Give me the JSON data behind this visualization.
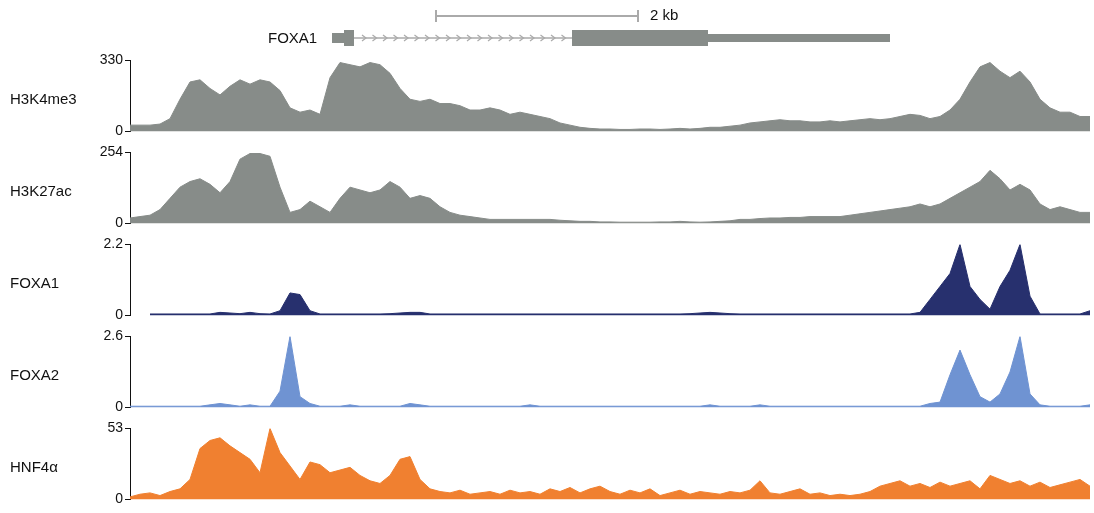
{
  "chart_data": [
    {
      "type": "area",
      "ylabel": "H3K4me3",
      "annotations": [
        "FOXA1",
        "2 kb"
      ],
      "tick_labels": "y",
      "grid": false,
      "ylim": [
        0,
        330
      ],
      "yticks": [
        0,
        330
      ],
      "color": "#878c89",
      "categories": [
        null,
        null,
        null,
        null,
        null,
        null,
        null,
        null,
        null,
        null,
        null,
        null,
        null,
        null,
        null,
        null,
        null,
        null,
        null,
        null,
        null,
        null,
        null,
        null,
        null,
        null,
        null,
        null,
        null,
        null,
        null,
        null,
        null,
        null,
        null,
        null,
        null,
        null,
        null,
        null,
        null,
        null,
        null,
        null,
        null,
        null,
        null,
        null,
        null,
        null,
        null,
        null,
        null,
        null,
        null,
        null,
        null,
        null,
        null,
        null,
        null,
        null,
        null,
        null,
        null,
        null,
        null,
        null,
        null,
        null,
        null,
        null,
        null,
        null,
        null,
        null,
        null,
        null,
        null,
        null,
        null,
        null,
        null,
        null,
        null,
        null,
        null,
        null,
        null,
        null,
        null,
        null,
        null,
        null,
        null,
        null,
        null
      ],
      "values": [
        30,
        30,
        30,
        35,
        60,
        150,
        230,
        240,
        200,
        170,
        210,
        240,
        220,
        240,
        230,
        190,
        110,
        90,
        100,
        80,
        250,
        320,
        310,
        300,
        320,
        310,
        270,
        200,
        150,
        140,
        150,
        130,
        130,
        120,
        100,
        100,
        110,
        100,
        80,
        90,
        80,
        70,
        60,
        40,
        30,
        20,
        15,
        12,
        12,
        10,
        10,
        12,
        12,
        10,
        12,
        15,
        12,
        15,
        20,
        20,
        25,
        30,
        40,
        45,
        50,
        55,
        50,
        50,
        45,
        45,
        50,
        45,
        50,
        55,
        60,
        55,
        60,
        70,
        80,
        75,
        60,
        70,
        100,
        150,
        230,
        300,
        320,
        280,
        250,
        280,
        230,
        150,
        110,
        90,
        90,
        70,
        70
      ]
    },
    {
      "type": "area",
      "ylabel": "H3K27ac",
      "tick_labels": "y",
      "grid": false,
      "ylim": [
        0,
        254
      ],
      "yticks": [
        0,
        254
      ],
      "color": "#878c89",
      "categories": [
        null,
        null,
        null,
        null,
        null,
        null,
        null,
        null,
        null,
        null,
        null,
        null,
        null,
        null,
        null,
        null,
        null,
        null,
        null,
        null,
        null,
        null,
        null,
        null,
        null,
        null,
        null,
        null,
        null,
        null,
        null,
        null,
        null,
        null,
        null,
        null,
        null,
        null,
        null,
        null,
        null,
        null,
        null,
        null,
        null,
        null,
        null,
        null,
        null,
        null,
        null,
        null,
        null,
        null,
        null,
        null,
        null,
        null,
        null,
        null,
        null,
        null,
        null,
        null,
        null,
        null,
        null,
        null,
        null,
        null,
        null,
        null,
        null,
        null,
        null,
        null,
        null,
        null,
        null,
        null,
        null,
        null,
        null,
        null,
        null,
        null,
        null,
        null,
        null,
        null,
        null,
        null,
        null,
        null,
        null,
        null,
        null
      ],
      "values": [
        20,
        25,
        30,
        50,
        90,
        130,
        150,
        160,
        140,
        110,
        150,
        230,
        250,
        250,
        240,
        130,
        40,
        50,
        80,
        60,
        40,
        90,
        130,
        120,
        110,
        120,
        150,
        130,
        90,
        100,
        90,
        60,
        40,
        30,
        25,
        20,
        15,
        15,
        15,
        15,
        15,
        15,
        15,
        12,
        10,
        8,
        8,
        6,
        6,
        5,
        5,
        5,
        5,
        6,
        6,
        8,
        6,
        5,
        6,
        8,
        10,
        15,
        15,
        18,
        20,
        20,
        22,
        22,
        25,
        25,
        25,
        25,
        30,
        35,
        40,
        45,
        50,
        55,
        60,
        70,
        60,
        70,
        90,
        110,
        130,
        150,
        190,
        160,
        120,
        140,
        120,
        70,
        50,
        60,
        50,
        40,
        40
      ]
    },
    {
      "type": "area",
      "ylabel": "FOXA1",
      "tick_labels": "y",
      "grid": false,
      "ylim": [
        0,
        2.2
      ],
      "yticks": [
        0,
        2.2
      ],
      "color": "#27306e",
      "categories": [
        null,
        null,
        null,
        null,
        null,
        null,
        null,
        null,
        null,
        null,
        null,
        null,
        null,
        null,
        null,
        null,
        null,
        null,
        null,
        null,
        null,
        null,
        null,
        null,
        null,
        null,
        null,
        null,
        null,
        null,
        null,
        null,
        null,
        null,
        null,
        null,
        null,
        null,
        null,
        null,
        null,
        null,
        null,
        null,
        null,
        null,
        null,
        null,
        null,
        null,
        null,
        null,
        null,
        null,
        null,
        null,
        null,
        null,
        null,
        null,
        null,
        null,
        null,
        null,
        null,
        null,
        null,
        null,
        null,
        null,
        null,
        null,
        null,
        null,
        null,
        null,
        null,
        null,
        null,
        null,
        null,
        null,
        null,
        null,
        null,
        null,
        null,
        null,
        null,
        null,
        null,
        null,
        null,
        null,
        null,
        null,
        null
      ],
      "values": [
        null,
        null,
        0.05,
        0.05,
        0.05,
        0.05,
        0.05,
        0.05,
        0.05,
        0.1,
        0.08,
        0.06,
        0.1,
        0.06,
        0.05,
        0.15,
        0.7,
        0.65,
        0.15,
        0.05,
        0.05,
        0.05,
        0.05,
        0.05,
        0.05,
        0.05,
        0.06,
        0.08,
        0.1,
        0.1,
        0.05,
        0.05,
        0.05,
        0.05,
        0.05,
        0.05,
        0.05,
        0.05,
        0.05,
        0.05,
        0.05,
        0.05,
        0.05,
        0.05,
        0.05,
        0.05,
        0.05,
        0.05,
        0.05,
        0.05,
        0.05,
        0.05,
        0.05,
        0.05,
        0.05,
        0.05,
        0.06,
        0.08,
        0.1,
        0.08,
        0.06,
        0.05,
        0.05,
        0.05,
        0.05,
        0.05,
        0.05,
        0.05,
        0.05,
        0.05,
        0.05,
        0.05,
        0.05,
        0.05,
        0.05,
        0.05,
        0.05,
        0.05,
        0.05,
        0.1,
        0.5,
        0.9,
        1.3,
        2.2,
        0.9,
        0.5,
        0.2,
        0.9,
        1.4,
        2.2,
        0.6,
        0.05,
        0.05,
        0.05,
        0.05,
        0.05,
        0.15
      ]
    },
    {
      "type": "area",
      "ylabel": "FOXA2",
      "tick_labels": "y",
      "grid": false,
      "ylim": [
        0,
        2.6
      ],
      "yticks": [
        0,
        2.6
      ],
      "color": "#6f93d2",
      "categories": [
        null,
        null,
        null,
        null,
        null,
        null,
        null,
        null,
        null,
        null,
        null,
        null,
        null,
        null,
        null,
        null,
        null,
        null,
        null,
        null,
        null,
        null,
        null,
        null,
        null,
        null,
        null,
        null,
        null,
        null,
        null,
        null,
        null,
        null,
        null,
        null,
        null,
        null,
        null,
        null,
        null,
        null,
        null,
        null,
        null,
        null,
        null,
        null,
        null,
        null,
        null,
        null,
        null,
        null,
        null,
        null,
        null,
        null,
        null,
        null,
        null,
        null,
        null,
        null,
        null,
        null,
        null,
        null,
        null,
        null,
        null,
        null,
        null,
        null,
        null,
        null,
        null,
        null,
        null,
        null,
        null,
        null,
        null,
        null,
        null,
        null,
        null,
        null,
        null,
        null,
        null,
        null,
        null,
        null,
        null,
        null,
        null
      ],
      "values": [
        0.05,
        0.05,
        0.05,
        0.05,
        0.05,
        0.05,
        0.05,
        0.05,
        0.1,
        0.15,
        0.1,
        0.05,
        0.1,
        0.05,
        0.05,
        0.6,
        2.6,
        0.4,
        0.15,
        0.05,
        0.05,
        0.05,
        0.1,
        0.05,
        0.05,
        0.05,
        0.05,
        0.05,
        0.15,
        0.1,
        0.05,
        0.05,
        0.05,
        0.05,
        0.05,
        0.05,
        0.05,
        0.05,
        0.05,
        0.05,
        0.1,
        0.05,
        0.05,
        0.05,
        0.05,
        0.05,
        0.05,
        0.05,
        0.05,
        0.05,
        0.05,
        0.05,
        0.05,
        0.05,
        0.05,
        0.05,
        0.05,
        0.05,
        0.1,
        0.05,
        0.05,
        0.05,
        0.05,
        0.1,
        0.05,
        0.05,
        0.05,
        0.05,
        0.05,
        0.05,
        0.05,
        0.05,
        0.05,
        0.05,
        0.05,
        0.05,
        0.05,
        0.05,
        0.05,
        0.05,
        0.15,
        0.2,
        1.2,
        2.1,
        1.2,
        0.4,
        0.2,
        0.5,
        1.3,
        2.6,
        0.5,
        0.1,
        0.05,
        0.05,
        0.05,
        0.05,
        0.1
      ]
    },
    {
      "type": "area",
      "ylabel": "HNF4α",
      "tick_labels": "y",
      "grid": false,
      "ylim": [
        0,
        53
      ],
      "yticks": [
        0,
        53
      ],
      "color": "#f08030",
      "categories": [
        null,
        null,
        null,
        null,
        null,
        null,
        null,
        null,
        null,
        null,
        null,
        null,
        null,
        null,
        null,
        null,
        null,
        null,
        null,
        null,
        null,
        null,
        null,
        null,
        null,
        null,
        null,
        null,
        null,
        null,
        null,
        null,
        null,
        null,
        null,
        null,
        null,
        null,
        null,
        null,
        null,
        null,
        null,
        null,
        null,
        null,
        null,
        null,
        null,
        null,
        null,
        null,
        null,
        null,
        null,
        null,
        null,
        null,
        null,
        null,
        null,
        null,
        null,
        null,
        null,
        null,
        null,
        null,
        null,
        null,
        null,
        null,
        null,
        null,
        null,
        null,
        null,
        null,
        null,
        null,
        null,
        null,
        null,
        null,
        null,
        null,
        null,
        null,
        null,
        null,
        null,
        null,
        null,
        null,
        null,
        null,
        null
      ],
      "values": [
        2,
        4,
        5,
        3,
        6,
        8,
        15,
        38,
        44,
        46,
        40,
        35,
        30,
        20,
        53,
        35,
        25,
        15,
        28,
        26,
        20,
        22,
        24,
        18,
        14,
        12,
        18,
        30,
        32,
        15,
        8,
        6,
        5,
        7,
        4,
        5,
        6,
        4,
        7,
        5,
        6,
        4,
        8,
        6,
        9,
        5,
        8,
        10,
        6,
        4,
        7,
        5,
        8,
        3,
        5,
        7,
        4,
        6,
        5,
        4,
        6,
        5,
        7,
        14,
        5,
        4,
        6,
        8,
        4,
        5,
        3,
        4,
        3,
        4,
        6,
        10,
        12,
        14,
        10,
        12,
        9,
        13,
        10,
        12,
        14,
        8,
        18,
        15,
        12,
        14,
        10,
        13,
        9,
        11,
        13,
        15,
        10
      ]
    }
  ]
}
